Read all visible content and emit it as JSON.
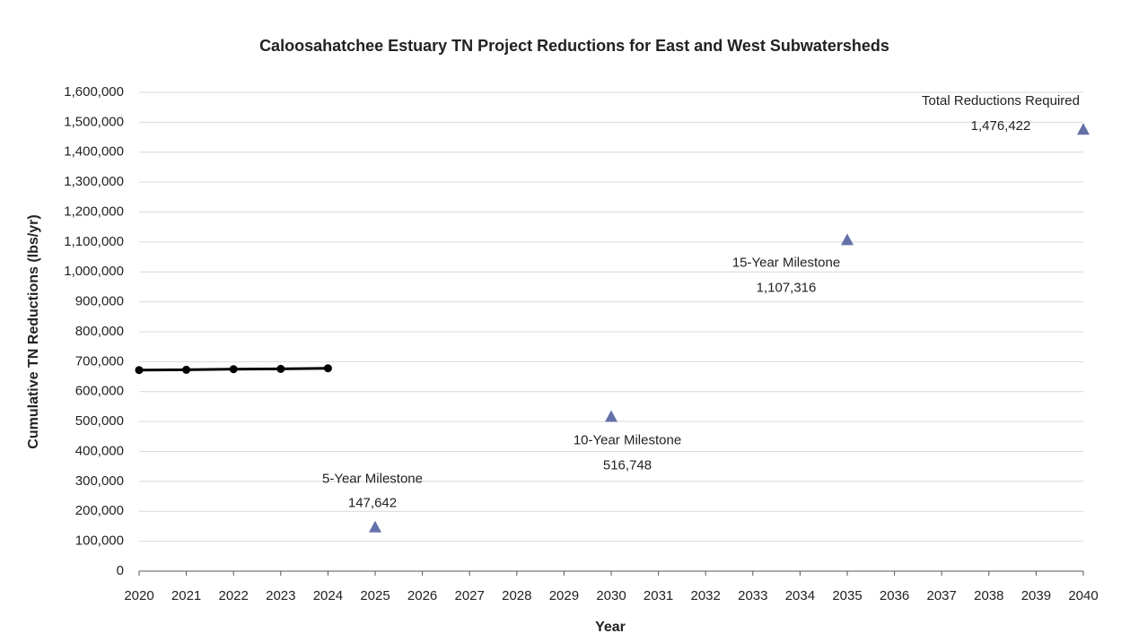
{
  "chart_data": {
    "type": "line",
    "title": "Caloosahatchee Estuary TN Project Reductions for East and West Subwatersheds",
    "x_label": "Year",
    "y_label": "Cumulative TN Reductions (lbs/yr)",
    "categories": [
      "2020",
      "2021",
      "2022",
      "2023",
      "2024",
      "2025",
      "2026",
      "2027",
      "2028",
      "2029",
      "2030",
      "2031",
      "2032",
      "2033",
      "2034",
      "2035",
      "2036",
      "2037",
      "2038",
      "2039",
      "2040"
    ],
    "series": [
      {
        "style": "line",
        "color": "#000000",
        "values": [
          672000,
          673000,
          675000,
          676000,
          678000,
          null,
          null,
          null,
          null,
          null,
          null,
          null,
          null,
          null,
          null,
          null,
          null,
          null,
          null,
          null,
          null
        ]
      },
      {
        "style": "triangle",
        "color": "#6470a8",
        "values": [
          null,
          null,
          null,
          null,
          null,
          147642,
          null,
          null,
          null,
          null,
          516748,
          null,
          null,
          null,
          null,
          1107316,
          null,
          null,
          null,
          null,
          1476422
        ],
        "value_labels": [
          null,
          null,
          null,
          null,
          null,
          "147,642",
          null,
          null,
          null,
          null,
          "516,748",
          null,
          null,
          null,
          null,
          "1,107,316",
          null,
          null,
          null,
          null,
          "1,476,422"
        ]
      }
    ],
    "annotations": [
      {
        "category": "2025",
        "text": "5-Year Milestone"
      },
      {
        "category": "2030",
        "text": "10-Year Milestone"
      },
      {
        "category": "2035",
        "text": "15-Year Milestone"
      },
      {
        "category": "2040",
        "text": "Total Reductions Required"
      }
    ],
    "ylim": [
      0,
      1600000
    ],
    "yticks": [
      0,
      {
        "value": 100000,
        "label": "100,000"
      },
      {
        "value": 200000,
        "label": "200,000"
      },
      {
        "value": 300000,
        "label": "300,000"
      },
      {
        "value": 400000,
        "label": "400,000"
      },
      {
        "value": 500000,
        "label": "500,000"
      },
      {
        "value": 600000,
        "label": "600,000"
      },
      {
        "value": 700000,
        "label": "700,000"
      },
      {
        "value": 800000,
        "label": "800,000"
      },
      {
        "value": 900000,
        "label": "900,000"
      },
      {
        "value": 1000000,
        "label": "1,000,000"
      },
      {
        "value": 1100000,
        "label": "1,100,000"
      },
      {
        "value": 1200000,
        "label": "1,200,000"
      },
      {
        "value": 1300000,
        "label": "1,300,000"
      },
      {
        "value": 1400000,
        "label": "1,400,000"
      },
      {
        "value": 1500000,
        "label": "1,500,000"
      },
      {
        "value": 1600000,
        "label": "1,600,000"
      }
    ],
    "grid": true
  }
}
